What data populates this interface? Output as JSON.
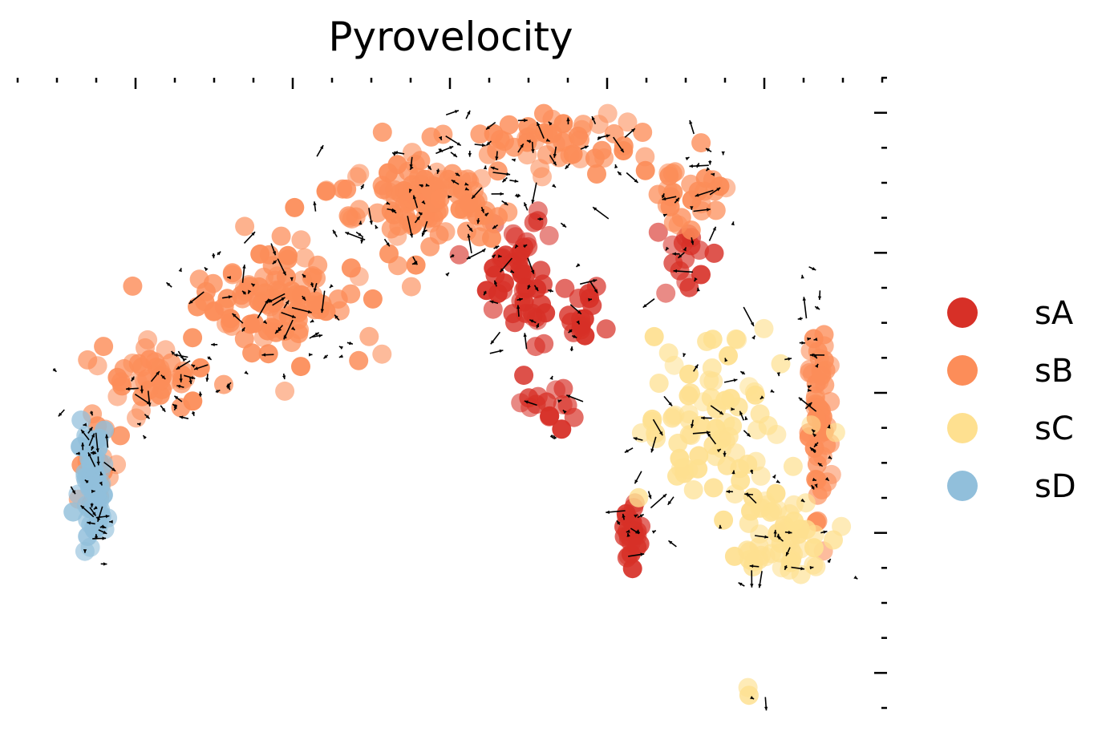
{
  "chart_data": {
    "type": "scatter",
    "title": "Pyrovelocity",
    "xlabel": "",
    "ylabel": "",
    "xlim": [
      0,
      22
    ],
    "ylim": [
      0,
      18
    ],
    "x_ticks_major": [
      3,
      7,
      11,
      15,
      19
    ],
    "y_ticks_major": [
      1,
      5,
      9,
      13,
      17
    ],
    "tick_labels_visible": false,
    "grid": false,
    "legend": {
      "position": "right",
      "entries": [
        {
          "label": "sA",
          "color": "#d73027"
        },
        {
          "label": "sB",
          "color": "#fc8d59"
        },
        {
          "label": "sC",
          "color": "#fee090"
        },
        {
          "label": "sD",
          "color": "#91bfdb"
        }
      ]
    },
    "series": [
      {
        "name": "sA",
        "color": "#d73027",
        "clusters": [
          {
            "center": [
              12.6,
              12.3
            ],
            "spread": [
              0.9,
              1.6
            ],
            "count": 50
          },
          {
            "center": [
              14.3,
              11.3
            ],
            "spread": [
              0.4,
              0.9
            ],
            "count": 16
          },
          {
            "center": [
              16.9,
              12.9
            ],
            "spread": [
              0.5,
              0.8
            ],
            "count": 16
          },
          {
            "center": [
              13.6,
              8.5
            ],
            "spread": [
              0.5,
              0.4
            ],
            "count": 14
          },
          {
            "center": [
              15.6,
              5.0
            ],
            "spread": [
              0.22,
              0.8
            ],
            "count": 24
          }
        ]
      },
      {
        "name": "sB",
        "color": "#fc8d59",
        "clusters": [
          {
            "center": [
              10.5,
              14.6
            ],
            "spread": [
              1.9,
              1.2
            ],
            "count": 110
          },
          {
            "center": [
              13.7,
              16.2
            ],
            "spread": [
              1.8,
              0.6
            ],
            "count": 45
          },
          {
            "center": [
              17.0,
              14.8
            ],
            "spread": [
              0.9,
              0.9
            ],
            "count": 28
          },
          {
            "center": [
              6.4,
              11.6
            ],
            "spread": [
              1.9,
              1.3
            ],
            "count": 100
          },
          {
            "center": [
              3.3,
              9.5
            ],
            "spread": [
              1.3,
              0.9
            ],
            "count": 45
          },
          {
            "center": [
              2.0,
              7.0
            ],
            "spread": [
              0.5,
              1.2
            ],
            "count": 24
          },
          {
            "center": [
              20.4,
              8.6
            ],
            "spread": [
              0.28,
              2.6
            ],
            "count": 55
          }
        ]
      },
      {
        "name": "sC",
        "color": "#fee090",
        "clusters": [
          {
            "center": [
              17.8,
              8.2
            ],
            "spread": [
              1.7,
              2.3
            ],
            "count": 80
          },
          {
            "center": [
              19.5,
              4.9
            ],
            "spread": [
              1.0,
              1.3
            ],
            "count": 50
          },
          {
            "center": [
              18.6,
              0.5
            ],
            "spread": [
              0.2,
              0.2
            ],
            "count": 2
          }
        ]
      },
      {
        "name": "sD",
        "color": "#91bfdb",
        "clusters": [
          {
            "center": [
              1.9,
              6.3
            ],
            "spread": [
              0.32,
              1.5
            ],
            "count": 65
          }
        ]
      }
    ],
    "arrows": {
      "description": "velocity vector field overlaid on the embedding",
      "color": "#000000",
      "count": 380
    }
  }
}
